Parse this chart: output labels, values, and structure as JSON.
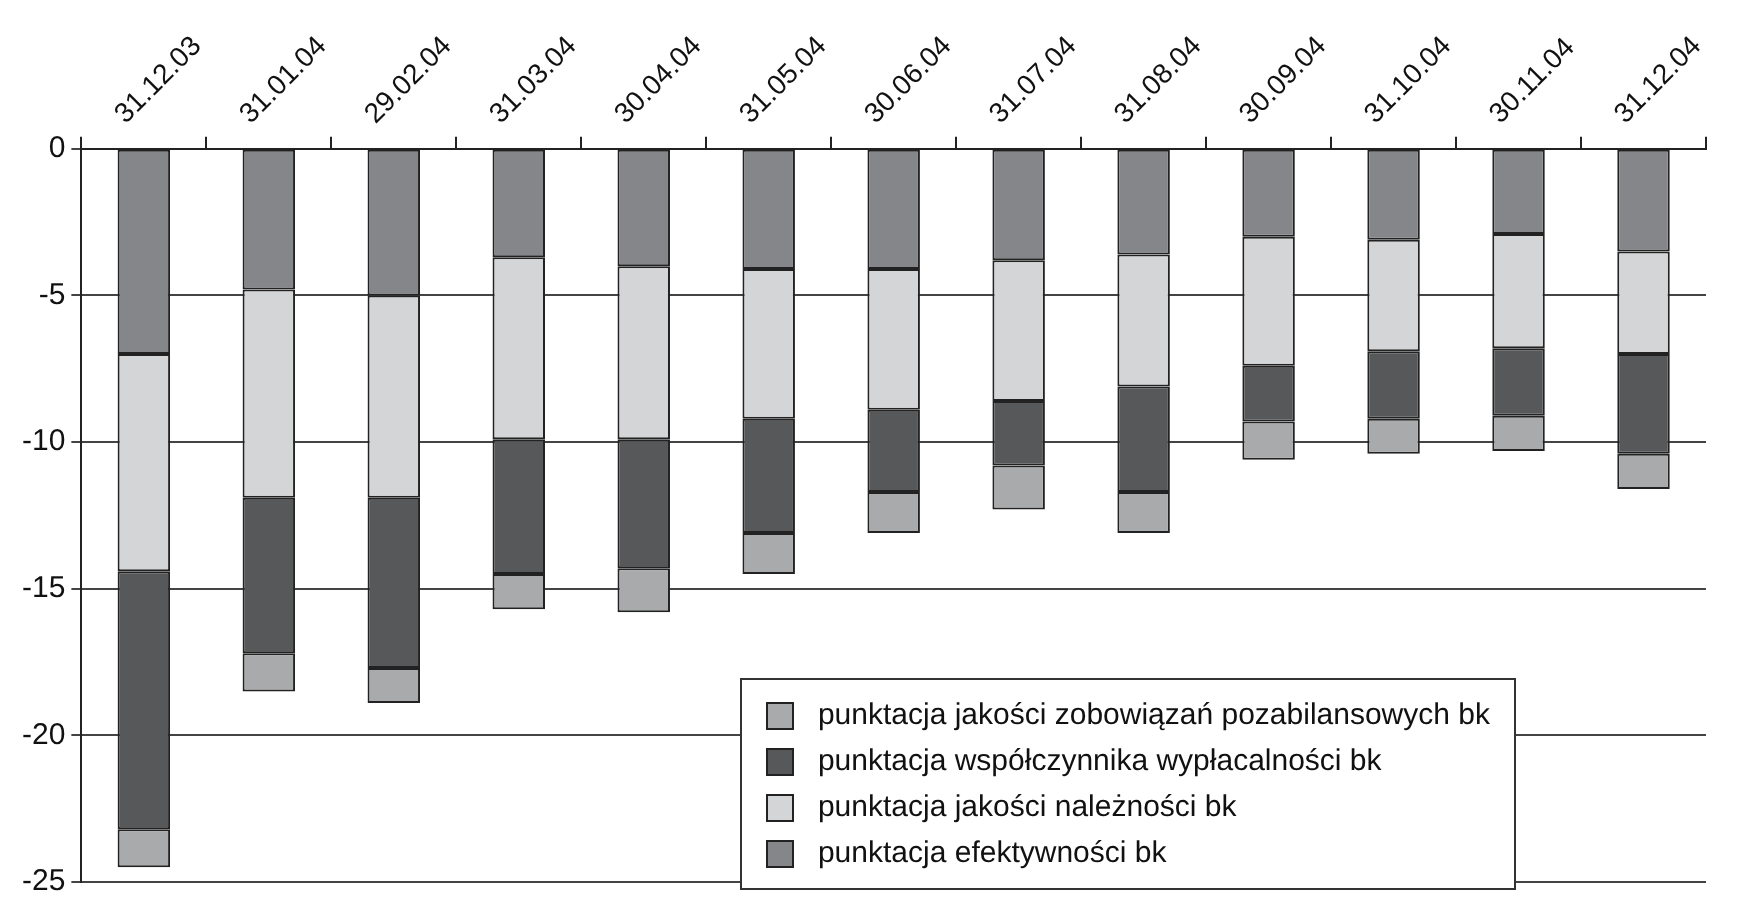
{
  "chart_data": {
    "type": "bar",
    "stacked": true,
    "categories": [
      "31.12.03",
      "31.01.04",
      "29.02.04",
      "31.03.04",
      "30.04.04",
      "31.05.04",
      "30.06.04",
      "31.07.04",
      "31.08.04",
      "30.09.04",
      "31.10.04",
      "30.11.04",
      "31.12.04"
    ],
    "series": [
      {
        "name": "punktacja efektywności bk",
        "color": "#85868a",
        "values": [
          -7.0,
          -4.8,
          -5.0,
          -3.7,
          -4.0,
          -4.1,
          -4.1,
          -3.8,
          -3.6,
          -3.0,
          -3.1,
          -2.9,
          -3.5
        ]
      },
      {
        "name": "punktacja jakości należności bk",
        "color": "#d4d5d7",
        "values": [
          -7.4,
          -7.1,
          -6.9,
          -6.2,
          -5.9,
          -5.1,
          -4.8,
          -4.8,
          -4.5,
          -4.4,
          -3.8,
          -3.9,
          -3.5
        ]
      },
      {
        "name": "punktacja współczynnika wypłacalności bk",
        "color": "#57585a",
        "values": [
          -8.8,
          -5.3,
          -5.8,
          -4.6,
          -4.4,
          -3.9,
          -2.8,
          -2.2,
          -3.6,
          -1.9,
          -2.3,
          -2.3,
          -3.4
        ]
      },
      {
        "name": "punktacja jakości zobowiązań pozabilansowych bk",
        "color": "#a9aaac",
        "values": [
          -1.3,
          -1.3,
          -1.2,
          -1.2,
          -1.5,
          -1.4,
          -1.4,
          -1.5,
          -1.4,
          -1.3,
          -1.2,
          -1.2,
          -1.2
        ]
      }
    ],
    "ylim": [
      -25,
      0
    ],
    "yticks": [
      0,
      -5,
      -10,
      -15,
      -20,
      -25
    ],
    "grid": "y",
    "legend": "bottom right"
  }
}
